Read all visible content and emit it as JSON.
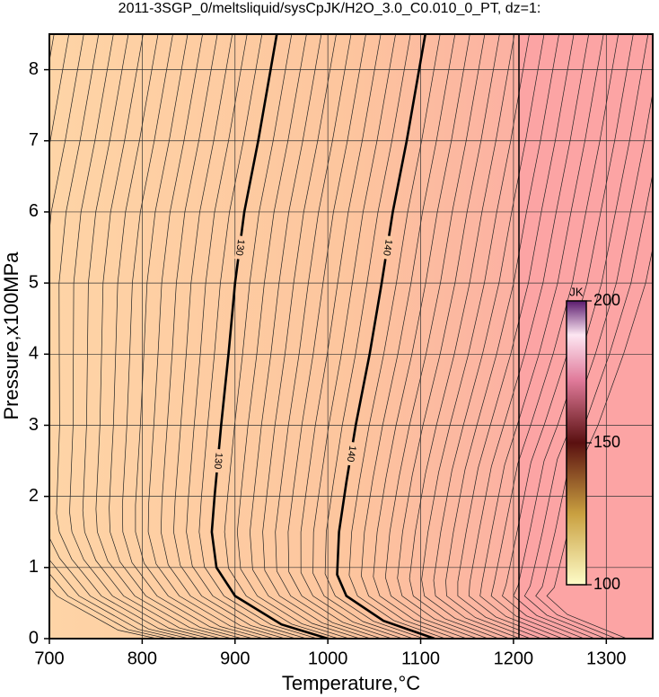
{
  "chart_data": {
    "type": "contour",
    "title": "2011-3SGP_0/meltsliquid/sysCpJK/H2O_3.0_C0.010_0_PT, dz=1:",
    "x_label": "Temperature,°C",
    "y_label": "Pressure,x100MPa",
    "xlim": [
      700,
      1350
    ],
    "xticks": [
      700,
      800,
      900,
      1000,
      1100,
      1200,
      1300
    ],
    "ylim": [
      0,
      8.5
    ],
    "yticks": [
      0,
      1,
      2,
      3,
      4,
      5,
      6,
      7,
      8
    ],
    "grid": true,
    "contours": [
      {
        "level": 130,
        "x": [
          1000,
          950,
          900,
          880,
          875,
          878,
          885,
          893,
          900,
          910,
          925,
          945
        ],
        "y": [
          0,
          0.2,
          0.6,
          1.0,
          1.5,
          2.0,
          3,
          4,
          5,
          6,
          7,
          8.5
        ]
      },
      {
        "level": 140,
        "x": [
          1115,
          1060,
          1020,
          1010,
          1012,
          1020,
          1030,
          1045,
          1058,
          1070,
          1085,
          1105
        ],
        "y": [
          0,
          0.25,
          0.6,
          0.9,
          1.5,
          2.2,
          3,
          4,
          5,
          6,
          7,
          8.5
        ]
      }
    ],
    "colorbar": {
      "label": "JK",
      "lim": [
        100,
        200
      ],
      "ticks": [
        100,
        150,
        200
      ]
    }
  }
}
